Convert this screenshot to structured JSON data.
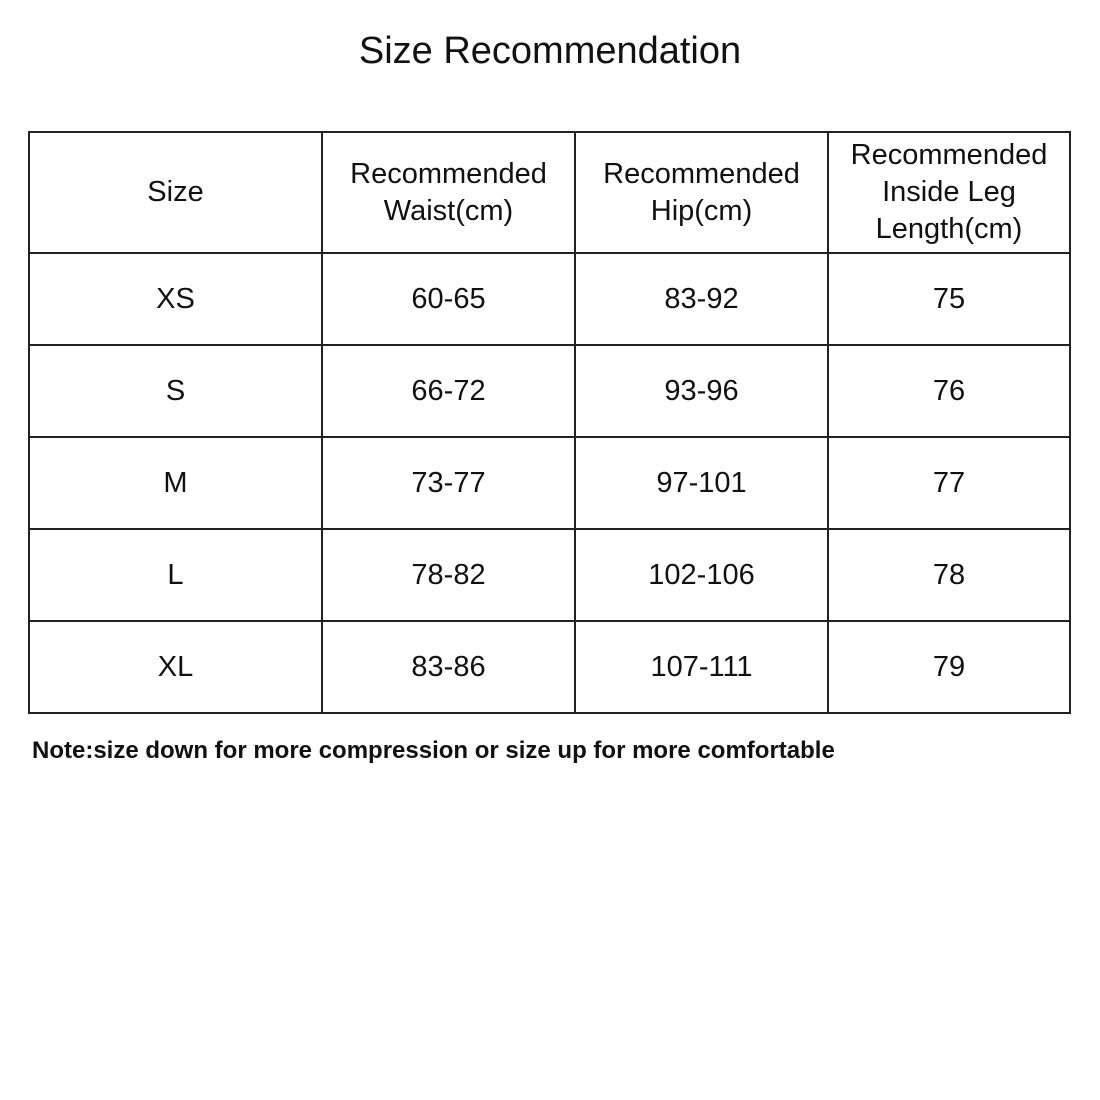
{
  "title": "Size Recommendation",
  "headers": [
    "Size",
    "Recommended Waist(cm)",
    "Recommended Hip(cm)",
    "Recommended Inside Leg Length(cm)"
  ],
  "rows": [
    [
      "XS",
      "60-65",
      "83-92",
      "75"
    ],
    [
      "S",
      "66-72",
      "93-96",
      "76"
    ],
    [
      "M",
      "73-77",
      "97-101",
      "77"
    ],
    [
      "L",
      "78-82",
      "102-106",
      "78"
    ],
    [
      "XL",
      "83-86",
      "107-111",
      "79"
    ]
  ],
  "note": "Note:size down for more compression or size up for more comfortable"
}
